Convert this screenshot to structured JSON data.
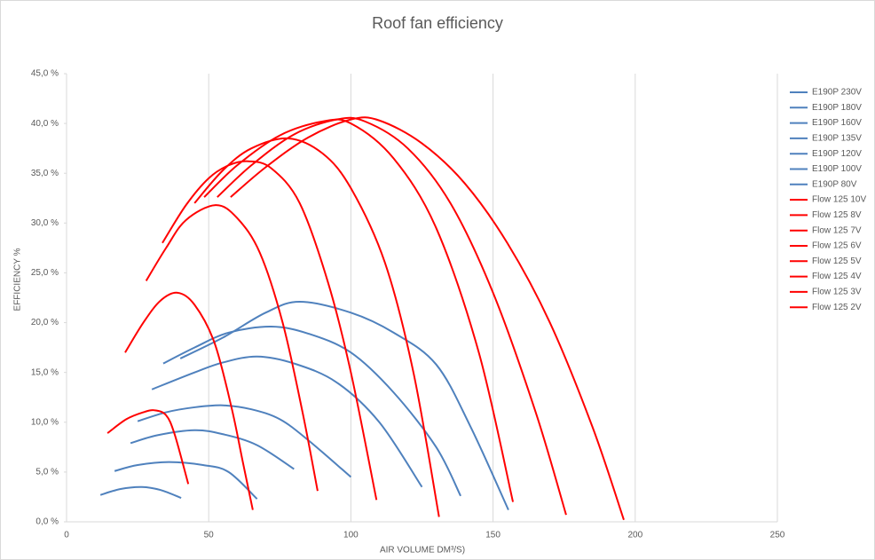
{
  "chart_data": {
    "type": "line",
    "title": "Roof fan efficiency",
    "x_label": "AIR VOLUME DM³/S)",
    "y_label": "EFFICIENCY %",
    "xlim": [
      0,
      250
    ],
    "xticks": [
      0,
      50,
      100,
      150,
      200,
      250
    ],
    "ylim": [
      0,
      45
    ],
    "yticks": [
      {
        "value": 0,
        "label": "0,0 %"
      },
      {
        "value": 5,
        "label": "5,0 %"
      },
      {
        "value": 10,
        "label": "10,0 %"
      },
      {
        "value": 15,
        "label": "15,0 %"
      },
      {
        "value": 20,
        "label": "20,0 %"
      },
      {
        "value": 25,
        "label": "25,0 %"
      },
      {
        "value": 30,
        "label": "30,0 %"
      },
      {
        "value": 35,
        "label": "35,0 %"
      },
      {
        "value": 40,
        "label": "40,0 %"
      },
      {
        "value": 45,
        "label": "45,0 %"
      }
    ],
    "grid": "x",
    "legend": "right",
    "series": [
      {
        "name": "E190P 230V",
        "color": "#4f81bd",
        "x": [
          40,
          55,
          70,
          82,
          100,
          115,
          130,
          142,
          155.4
        ],
        "values": [
          16.4,
          18.5,
          21.0,
          22.1,
          21.0,
          19.0,
          15.8,
          9.6,
          1.2
        ]
      },
      {
        "name": "E190P 180V",
        "color": "#4f81bd",
        "x": [
          34,
          45,
          57,
          72,
          85,
          100,
          115,
          130,
          138.6
        ],
        "values": [
          15.9,
          17.5,
          19.0,
          19.6,
          18.9,
          17.0,
          13.0,
          7.5,
          2.6
        ]
      },
      {
        "name": "E190P 160V",
        "color": "#4f81bd",
        "x": [
          30,
          45,
          55,
          67,
          80,
          95,
          110,
          125
        ],
        "values": [
          13.3,
          15.0,
          16.0,
          16.6,
          15.9,
          14.0,
          10.0,
          3.5
        ]
      },
      {
        "name": "E190P 135V",
        "color": "#4f81bd",
        "x": [
          25,
          35,
          45,
          55,
          65,
          75,
          85,
          100
        ],
        "values": [
          10.1,
          11.0,
          11.5,
          11.7,
          11.3,
          10.3,
          8.2,
          4.5
        ]
      },
      {
        "name": "E190P 120V",
        "color": "#4f81bd",
        "x": [
          22.5,
          32,
          45,
          55,
          67,
          80
        ],
        "values": [
          7.9,
          8.7,
          9.2,
          8.8,
          7.7,
          5.3
        ]
      },
      {
        "name": "E190P 100V",
        "color": "#4f81bd",
        "x": [
          16.9,
          25,
          36,
          48,
          57,
          67
        ],
        "values": [
          5.1,
          5.7,
          6.0,
          5.7,
          5.0,
          2.3
        ]
      },
      {
        "name": "E190P 80V",
        "color": "#4f81bd",
        "x": [
          11.9,
          19,
          26.5,
          33,
          40.3
        ],
        "values": [
          2.7,
          3.3,
          3.5,
          3.2,
          2.4
        ]
      },
      {
        "name": "Flow 125 10V",
        "color": "#ff0000",
        "x": [
          57.7,
          70,
          85,
          100,
          110,
          125,
          140,
          155,
          170,
          185,
          196
        ],
        "values": [
          32.6,
          35.6,
          38.6,
          40.4,
          40.3,
          38.0,
          34.0,
          28.0,
          20.0,
          9.5,
          0.2
        ]
      },
      {
        "name": "Flow 125 8V",
        "color": "#ff0000",
        "x": [
          53,
          65,
          80,
          95,
          105,
          120,
          135,
          150,
          165,
          175.7
        ],
        "values": [
          32.6,
          35.8,
          38.9,
          40.4,
          40.2,
          37.5,
          32.0,
          23.0,
          11.0,
          0.7
        ]
      },
      {
        "name": "Flow 125 7V",
        "color": "#ff0000",
        "x": [
          48.4,
          60,
          75,
          90,
          100,
          115,
          130,
          145,
          157
        ],
        "values": [
          32.6,
          35.8,
          38.8,
          40.2,
          40.0,
          36.5,
          29.5,
          17.0,
          2.0
        ]
      },
      {
        "name": "Flow 125 6V",
        "color": "#ff0000",
        "x": [
          45,
          55,
          65,
          78,
          90,
          100,
          112,
          122,
          131
        ],
        "values": [
          32.0,
          35.3,
          37.5,
          38.5,
          37.0,
          33.5,
          26.0,
          15.0,
          0.5
        ]
      },
      {
        "name": "Flow 125 5V",
        "color": "#ff0000",
        "x": [
          33.7,
          42,
          50,
          57,
          64,
          72,
          82,
          92,
          100,
          109
        ],
        "values": [
          28.0,
          31.8,
          34.5,
          35.8,
          36.2,
          35.5,
          32.0,
          24.0,
          15.0,
          2.2
        ]
      },
      {
        "name": "Flow 125 4V",
        "color": "#ff0000",
        "x": [
          28,
          35,
          42,
          52.4,
          60,
          68,
          76,
          83,
          88.3
        ],
        "values": [
          24.2,
          27.5,
          30.3,
          31.8,
          30.5,
          27.0,
          20.0,
          11.0,
          3.1
        ]
      },
      {
        "name": "Flow 125 3V",
        "color": "#ff0000",
        "x": [
          20.6,
          27,
          33,
          39,
          45,
          52,
          58,
          62,
          65.5
        ],
        "values": [
          17.0,
          20.0,
          22.2,
          23.0,
          21.8,
          18.0,
          11.5,
          6.0,
          1.2
        ]
      },
      {
        "name": "Flow 125 2V",
        "color": "#ff0000",
        "x": [
          14.4,
          21,
          27,
          31,
          35,
          38,
          42.8
        ],
        "values": [
          8.9,
          10.3,
          11.0,
          11.2,
          10.7,
          8.8,
          3.8
        ]
      }
    ]
  }
}
